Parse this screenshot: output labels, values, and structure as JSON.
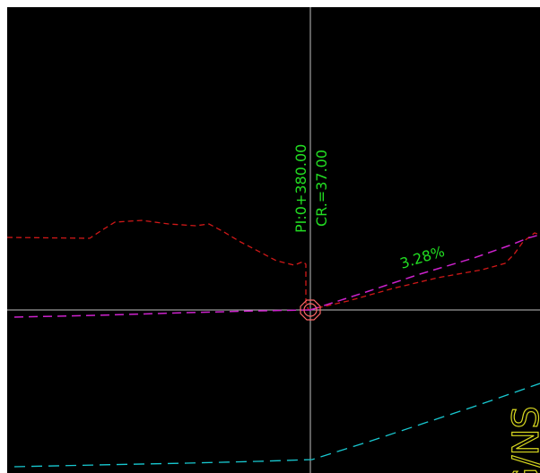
{
  "labels": {
    "pi_station": "PI:0+380.00",
    "crest": "CR.=37.00",
    "grade": "3.28%",
    "sheet_fragment": "G/NS"
  },
  "colors": {
    "background": "#000000",
    "crosshair": "#bfbfbf",
    "existing_ground": "#d01818",
    "proposed_profile": "#cc22cc",
    "lower_line": "#18c8d0",
    "label_text": "#22dd22",
    "sheet_text": "#d8d820",
    "pi_marker": "#ff6666"
  },
  "icons": {
    "pi_marker": "octagon-circle-marker"
  }
}
